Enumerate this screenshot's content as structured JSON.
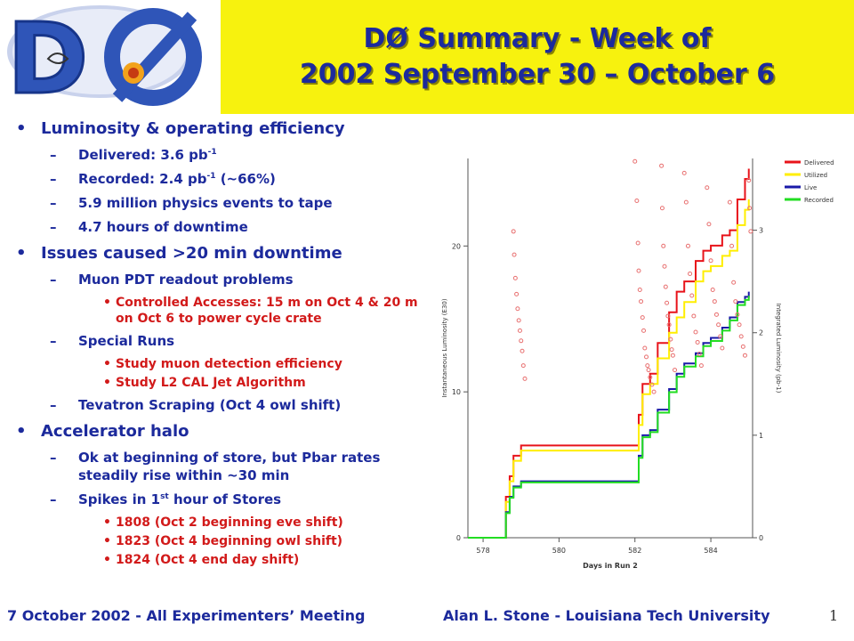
{
  "title": {
    "line1": "DØ Summary - Week of",
    "line2": "2002 September 30 – October 6"
  },
  "logo": {
    "text": "DØ"
  },
  "bullets": [
    {
      "text": "Luminosity & operating efficiency",
      "items": [
        {
          "pre": "Delivered: 3.6 pb",
          "sup": "-1",
          "post": ""
        },
        {
          "pre": "Recorded: 2.4 pb",
          "sup": "-1",
          "post": " (~66%)"
        },
        {
          "pre": "5.9 million physics events to tape",
          "sup": "",
          "post": ""
        },
        {
          "pre": "4.7 hours of downtime",
          "sup": "",
          "post": ""
        }
      ]
    },
    {
      "text": "Issues caused >20 min downtime",
      "items": [
        {
          "pre": "Muon PDT readout problems",
          "sup": "",
          "post": "",
          "subs": [
            "Controlled Accesses: 15 m on Oct 4 & 20 m on Oct 6 to power cycle crate"
          ]
        },
        {
          "pre": "Special Runs",
          "sup": "",
          "post": "",
          "subs": [
            "Study muon detection efficiency",
            "Study L2 CAL Jet Algorithm"
          ]
        },
        {
          "pre": "Tevatron Scraping (Oct 4 owl shift)",
          "sup": "",
          "post": ""
        }
      ]
    },
    {
      "text": "Accelerator halo",
      "items": [
        {
          "pre": "Ok at beginning of store, but Pbar rates steadily rise within ~30 min",
          "sup": "",
          "post": ""
        },
        {
          "pre": "Spikes in 1",
          "sup": "st",
          "post": " hour of Stores",
          "subs": [
            "1808 (Oct 2 beginning eve shift)",
            "1823 (Oct 4 beginning owl shift)",
            "1824 (Oct 4 end day shift)"
          ]
        }
      ]
    }
  ],
  "footer": {
    "left": "7 October 2002 - All Experimenters’ Meeting",
    "right": "Alan L. Stone - Louisiana Tech University",
    "page": "1"
  },
  "chart_data": {
    "type": "line",
    "xlabel": "Days in Run 2",
    "ylabel_left": "Instantaneous Luminosity (E30)",
    "ylabel_right": "Integrated Luminosity (pb-1)",
    "x_ticks": [
      578,
      580,
      582,
      584
    ],
    "y_left_ticks": [
      0,
      10,
      20
    ],
    "y_right_ticks": [
      0,
      1,
      2,
      3
    ],
    "xlim": [
      577.6,
      585.1
    ],
    "ylim_left": [
      0,
      26
    ],
    "ylim_right": [
      0,
      3.7
    ],
    "legend_position": "top-right",
    "series": [
      {
        "name": "Delivered",
        "axis": "right",
        "color": "#e8131a",
        "x": [
          577.6,
          578.4,
          578.6,
          578.7,
          578.8,
          579.0,
          581.0,
          582.0,
          582.1,
          582.2,
          582.4,
          582.6,
          582.9,
          583.1,
          583.3,
          583.6,
          583.8,
          584.0,
          584.3,
          584.5,
          584.7,
          584.9,
          585.0
        ],
        "y": [
          0,
          0,
          0.4,
          0.6,
          0.8,
          0.9,
          0.9,
          0.9,
          1.2,
          1.5,
          1.6,
          1.9,
          2.2,
          2.4,
          2.5,
          2.7,
          2.8,
          2.85,
          2.95,
          3.0,
          3.3,
          3.5,
          3.6
        ]
      },
      {
        "name": "Utilized",
        "axis": "right",
        "color": "#ffee00",
        "x": [
          577.6,
          578.4,
          578.6,
          578.7,
          578.8,
          579.0,
          581.0,
          582.0,
          582.1,
          582.2,
          582.4,
          582.6,
          582.9,
          583.1,
          583.3,
          583.6,
          583.8,
          584.0,
          584.3,
          584.5,
          584.7,
          584.9,
          585.0
        ],
        "y": [
          0,
          0,
          0.35,
          0.55,
          0.75,
          0.85,
          0.85,
          0.85,
          1.1,
          1.4,
          1.5,
          1.75,
          2.0,
          2.15,
          2.3,
          2.5,
          2.6,
          2.65,
          2.75,
          2.8,
          3.05,
          3.2,
          3.3
        ]
      },
      {
        "name": "Live",
        "axis": "right",
        "color": "#1a1aa8",
        "x": [
          577.6,
          578.4,
          578.6,
          578.7,
          578.8,
          579.0,
          581.0,
          582.0,
          582.1,
          582.2,
          582.4,
          582.6,
          582.9,
          583.1,
          583.3,
          583.6,
          583.8,
          584.0,
          584.3,
          584.5,
          584.7,
          584.9,
          585.0
        ],
        "y": [
          0,
          0,
          0.25,
          0.4,
          0.5,
          0.55,
          0.55,
          0.55,
          0.8,
          1.0,
          1.05,
          1.25,
          1.45,
          1.6,
          1.7,
          1.8,
          1.9,
          1.95,
          2.05,
          2.15,
          2.3,
          2.35,
          2.4
        ]
      },
      {
        "name": "Recorded",
        "axis": "right",
        "color": "#22dd22",
        "x": [
          577.6,
          578.4,
          578.6,
          578.7,
          578.8,
          579.0,
          581.0,
          582.0,
          582.1,
          582.2,
          582.4,
          582.6,
          582.9,
          583.1,
          583.3,
          583.6,
          583.8,
          584.0,
          584.3,
          584.5,
          584.7,
          584.9,
          585.0
        ],
        "y": [
          0,
          0,
          0.24,
          0.39,
          0.49,
          0.54,
          0.54,
          0.54,
          0.78,
          0.98,
          1.03,
          1.22,
          1.42,
          1.57,
          1.67,
          1.77,
          1.87,
          1.92,
          2.02,
          2.12,
          2.27,
          2.32,
          2.36
        ]
      },
      {
        "name": "Instantaneous",
        "axis": "left",
        "type": "scatter",
        "color": "#e87070",
        "x": [
          578.8,
          578.82,
          578.85,
          578.88,
          578.91,
          578.94,
          578.97,
          579.0,
          579.03,
          579.06,
          579.1,
          582.0,
          582.05,
          582.08,
          582.1,
          582.13,
          582.16,
          582.2,
          582.23,
          582.26,
          582.3,
          582.33,
          582.36,
          582.4,
          582.45,
          582.5,
          582.7,
          582.72,
          582.75,
          582.78,
          582.81,
          582.84,
          582.87,
          582.9,
          582.94,
          582.97,
          583.0,
          583.05,
          583.3,
          583.35,
          583.4,
          583.45,
          583.5,
          583.55,
          583.6,
          583.65,
          583.7,
          583.75,
          583.9,
          583.95,
          584.0,
          584.05,
          584.1,
          584.15,
          584.2,
          584.25,
          584.3,
          584.5,
          584.55,
          584.6,
          584.65,
          584.7,
          584.75,
          584.8,
          584.85,
          584.9,
          585.0,
          585.02,
          585.05
        ],
        "y": [
          21,
          19.4,
          17.8,
          16.7,
          15.7,
          14.9,
          14.2,
          13.5,
          12.8,
          11.8,
          10.9,
          25.8,
          23.1,
          20.2,
          18.3,
          17.0,
          16.2,
          15.1,
          14.2,
          13.0,
          12.4,
          11.8,
          11.5,
          11.0,
          10.5,
          10.0,
          25.5,
          22.6,
          20.0,
          18.6,
          17.2,
          16.1,
          15.2,
          14.6,
          13.6,
          12.9,
          12.5,
          11.5,
          25.0,
          23.0,
          20.0,
          18.1,
          16.6,
          15.2,
          14.1,
          13.4,
          12.6,
          11.8,
          24.0,
          21.5,
          19.0,
          17.0,
          16.2,
          15.3,
          14.6,
          13.8,
          13.0,
          23.0,
          20.0,
          17.5,
          16.2,
          15.3,
          14.6,
          13.8,
          13.1,
          12.5,
          24.5,
          22.6,
          21.0
        ]
      }
    ]
  }
}
